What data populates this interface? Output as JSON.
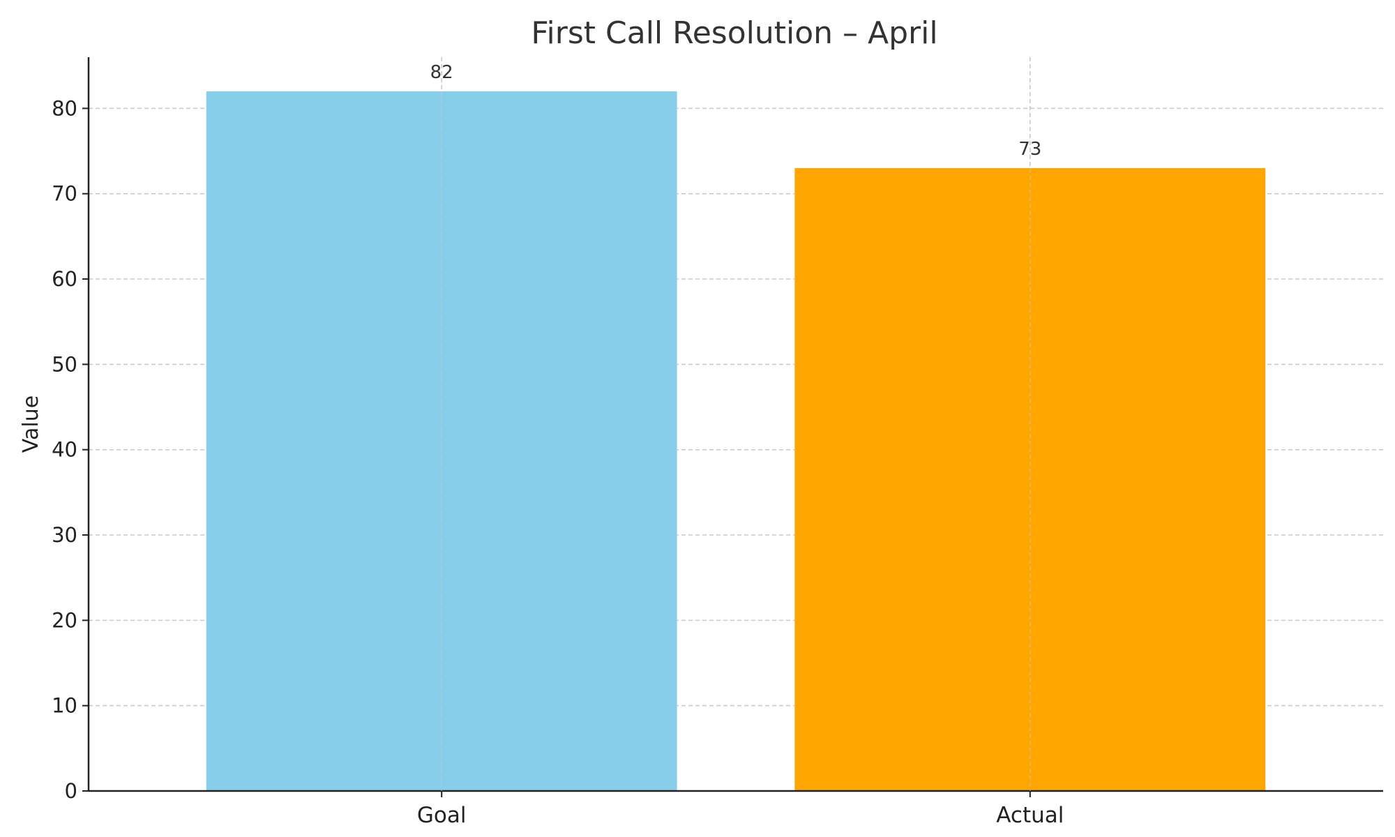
{
  "chart_data": {
    "type": "bar",
    "title": "First Call Resolution – April",
    "xlabel": "",
    "ylabel": "Value",
    "categories": [
      "Goal",
      "Actual"
    ],
    "values": [
      82,
      73
    ],
    "data_labels": [
      "82",
      "73"
    ],
    "colors": [
      "#87CEEB",
      "#FFA500"
    ],
    "ylim": [
      0,
      86
    ],
    "yticks": [
      0,
      10,
      20,
      30,
      40,
      50,
      60,
      70,
      80
    ],
    "ytick_labels": [
      "0",
      "10",
      "20",
      "30",
      "40",
      "50",
      "60",
      "70",
      "80"
    ],
    "grid": true,
    "legend": "none"
  }
}
